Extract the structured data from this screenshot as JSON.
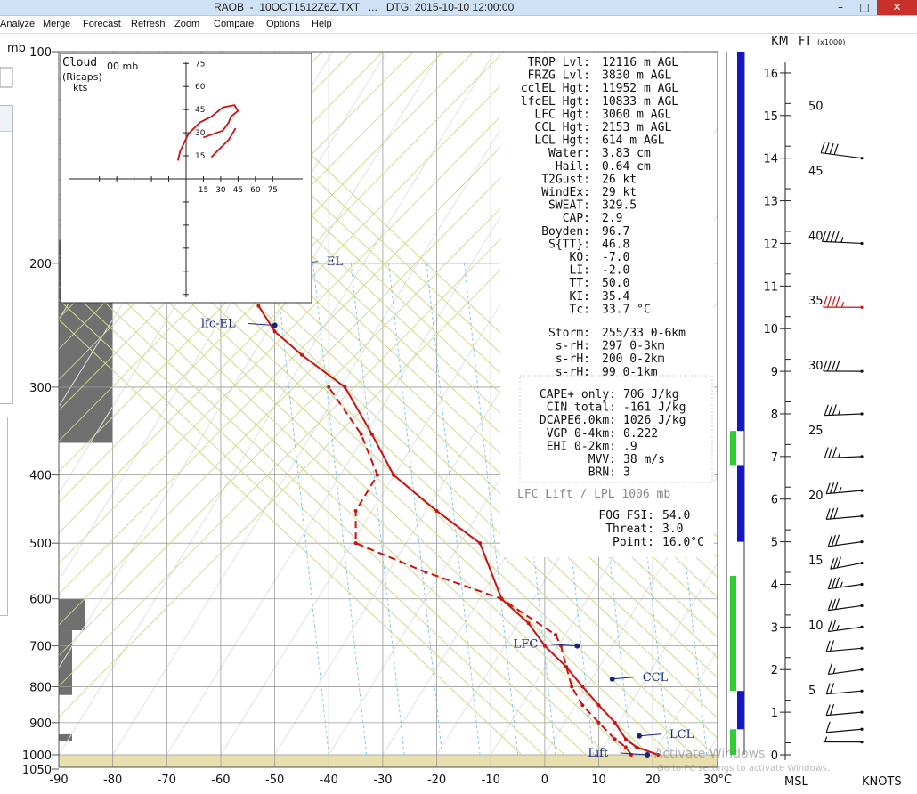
{
  "window": {
    "app": "RAOB",
    "file": "10OCT1512Z6Z.TXT",
    "dtg": "DTG: 2015-10-10 12:00:00",
    "title_full": "RAOB  -  10OCT1512Z6Z.TXT   ...   DTG: 2015-10-10 12:00:00",
    "controls": [
      "–",
      "□",
      "✕"
    ]
  },
  "menu": [
    "Analyze",
    "Merge",
    "Forecast",
    "Refresh",
    "Zoom",
    "Compare",
    "Options",
    "Help"
  ],
  "colors": {
    "temp": "#cc1111",
    "isotherm": "#9a9a9a",
    "dry_adiabat": "#cfd88a",
    "mixing_ratio": "#6ec3e8",
    "ground_band": "#e8dfae",
    "cloud_bar": "#707070",
    "blue_bar": "#1515c8",
    "green_bar": "#2ecf2e",
    "label_blue": "#1a237e"
  },
  "top_left_label": "mb",
  "chart_data": {
    "type": "line",
    "title": "",
    "xlabel": "",
    "ylabel": "mb",
    "x_unit_label": "30°C",
    "xticks": [
      -90,
      -80,
      -70,
      -60,
      -50,
      -40,
      -30,
      -20,
      -10,
      0,
      10,
      20
    ],
    "xlim": [
      -90,
      32
    ],
    "y_ticks": [
      100,
      200,
      300,
      400,
      500,
      600,
      700,
      800,
      900,
      1000,
      1050
    ],
    "ylim_mb": [
      100,
      1050
    ],
    "y_scale": "log",
    "series": [
      {
        "name": "temperature",
        "style": "solid",
        "points": [
          [
            21,
            1000
          ],
          [
            17,
            975
          ],
          [
            15,
            950
          ],
          [
            13,
            900
          ],
          [
            10,
            850
          ],
          [
            7,
            800
          ],
          [
            4,
            750
          ],
          [
            0,
            700
          ],
          [
            -3,
            650
          ],
          [
            -8,
            600
          ],
          [
            -12,
            500
          ],
          [
            -20,
            450
          ],
          [
            -28,
            400
          ],
          [
            -32,
            350
          ],
          [
            -37,
            300
          ],
          [
            -45,
            270
          ],
          [
            -50,
            250
          ],
          [
            -53,
            230
          ]
        ]
      },
      {
        "name": "dewpoint",
        "style": "dashed",
        "points": [
          [
            16,
            1000
          ],
          [
            15,
            975
          ],
          [
            13,
            950
          ],
          [
            10,
            900
          ],
          [
            7,
            850
          ],
          [
            5,
            800
          ],
          [
            4,
            750
          ],
          [
            3,
            700
          ],
          [
            2,
            675
          ],
          [
            -8,
            600
          ],
          [
            -22,
            550
          ],
          [
            -35,
            500
          ],
          [
            -35,
            450
          ],
          [
            -31,
            400
          ],
          [
            -34,
            350
          ],
          [
            -40,
            300
          ]
        ]
      }
    ],
    "markers": [
      {
        "label": "LFC",
        "t": 6,
        "p": 700,
        "label_side": "left"
      },
      {
        "label": "CCL",
        "t": 12.5,
        "p": 780,
        "label_side": "right"
      },
      {
        "label": "LCL",
        "t": 17.5,
        "p": 940,
        "label_side": "right"
      },
      {
        "label": "Lift",
        "t": 19,
        "p": 1000,
        "label_side": "left"
      },
      {
        "label": "lfc-EL",
        "t": -50,
        "p": 245,
        "label_side": "left"
      },
      {
        "label": "EL",
        "t": -46,
        "p": 200,
        "label_side": "right"
      }
    ],
    "cloud_cover": [
      {
        "p_top": 185,
        "p_bot": 360,
        "width_frac": 1.0
      },
      {
        "p_top": 600,
        "p_bot": 665,
        "width_frac": 0.5
      },
      {
        "p_top": 665,
        "p_bot": 822,
        "width_frac": 0.25
      },
      {
        "p_top": 935,
        "p_bot": 955,
        "width_frac": 0.25
      }
    ],
    "altitude_axes": {
      "km_label": "KM",
      "ft_label": "FT",
      "ft_unit": "(x1000)",
      "msl_label": "MSL",
      "knots_label": "KNOTS",
      "km_ticks": [
        0,
        1,
        2,
        3,
        4,
        5,
        6,
        7,
        8,
        9,
        10,
        11,
        12,
        13,
        14,
        15,
        16
      ],
      "ft_ticks": [
        5,
        10,
        15,
        20,
        25,
        30,
        35,
        40,
        45,
        50
      ],
      "km_range": [
        0,
        16.5
      ]
    },
    "wind_barbs": [
      {
        "km": 0.3,
        "dir": 250,
        "spd": 5,
        "highlight": false
      },
      {
        "km": 0.6,
        "dir": 240,
        "spd": 10,
        "highlight": false
      },
      {
        "km": 1.0,
        "dir": 240,
        "spd": 20,
        "highlight": false
      },
      {
        "km": 1.5,
        "dir": 240,
        "spd": 20,
        "highlight": false
      },
      {
        "km": 2.0,
        "dir": 235,
        "spd": 15,
        "highlight": false
      },
      {
        "km": 2.5,
        "dir": 240,
        "spd": 20,
        "highlight": false
      },
      {
        "km": 3.0,
        "dir": 235,
        "spd": 25,
        "highlight": false
      },
      {
        "km": 3.5,
        "dir": 235,
        "spd": 30,
        "highlight": false
      },
      {
        "km": 4.0,
        "dir": 235,
        "spd": 35,
        "highlight": false
      },
      {
        "km": 4.5,
        "dir": 230,
        "spd": 30,
        "highlight": false
      },
      {
        "km": 5.0,
        "dir": 235,
        "spd": 30,
        "highlight": false
      },
      {
        "km": 5.6,
        "dir": 240,
        "spd": 30,
        "highlight": false
      },
      {
        "km": 6.2,
        "dir": 240,
        "spd": 35,
        "highlight": false
      },
      {
        "km": 7.0,
        "dir": 245,
        "spd": 35,
        "highlight": false
      },
      {
        "km": 8.0,
        "dir": 245,
        "spd": 35,
        "highlight": false
      },
      {
        "km": 9.0,
        "dir": 250,
        "spd": 40,
        "highlight": false
      },
      {
        "km": 10.5,
        "dir": 250,
        "spd": 45,
        "highlight": true
      },
      {
        "km": 12.0,
        "dir": 255,
        "spd": 45,
        "highlight": false
      },
      {
        "km": 14.0,
        "dir": 265,
        "spd": 40,
        "highlight": false
      }
    ],
    "side_bars": [
      {
        "color": "blue",
        "km_bot": 7.6,
        "km_top": 16.5
      },
      {
        "color": "green",
        "km_bot": 6.8,
        "km_top": 7.6
      },
      {
        "color": "blue",
        "km_bot": 5.0,
        "km_top": 6.8
      },
      {
        "color": "green",
        "km_bot": 1.5,
        "km_top": 4.2
      },
      {
        "color": "blue",
        "km_bot": 0.6,
        "km_top": 1.5
      },
      {
        "color": "green",
        "km_bot": 0.0,
        "km_top": 0.6
      }
    ]
  },
  "inset": {
    "title": "Cloud",
    "subtitle": "(Ricaps)",
    "unit": "kts",
    "corner": "00 mb",
    "ticks": [
      15,
      30,
      45,
      60,
      75
    ],
    "hodograph": [
      [
        38,
        22
      ],
      [
        55,
        28
      ],
      [
        60,
        35
      ],
      [
        62,
        40
      ],
      [
        68,
        45
      ],
      [
        65,
        50
      ],
      [
        55,
        48
      ],
      [
        45,
        40
      ],
      [
        35,
        35
      ],
      [
        25,
        25
      ],
      [
        18,
        10
      ],
      [
        16,
        2
      ]
    ],
    "segment2": [
      [
        45,
        5
      ],
      [
        60,
        20
      ],
      [
        66,
        30
      ]
    ]
  },
  "params": [
    {
      "k": "TROP Lvl:",
      "v": "12116 m AGL"
    },
    {
      "k": "FRZG Lvl:",
      "v": " 3830 m AGL"
    },
    {
      "k": "cclEL Hgt:",
      "v": "11952 m AGL"
    },
    {
      "k": "lfcEL Hgt:",
      "v": "10833 m AGL"
    },
    {
      "k": "LFC Hgt:",
      "v": " 3060 m AGL"
    },
    {
      "k": "CCL Hgt:",
      "v": " 2153 m AGL"
    },
    {
      "k": "LCL Hgt:",
      "v": "  614 m AGL"
    },
    {
      "k": "Water:",
      "v": " 3.83 cm"
    },
    {
      "k": "Hail:",
      "v": " 0.64 cm"
    },
    {
      "k": "T2Gust:",
      "v": "   26 kt"
    },
    {
      "k": "WindEx:",
      "v": "   29 kt"
    },
    {
      "k": "SWEAT:",
      "v": "329.5"
    },
    {
      "k": "CAP:",
      "v": "  2.9"
    },
    {
      "k": "Boyden:",
      "v": " 96.7"
    },
    {
      "k": "S{TT}:",
      "v": " 46.8"
    },
    {
      "k": "KO:",
      "v": " -7.0"
    },
    {
      "k": "LI:",
      "v": " -2.0"
    },
    {
      "k": "TT:",
      "v": " 50.0"
    },
    {
      "k": "KI:",
      "v": " 35.4"
    },
    {
      "k": "Tc:",
      "v": " 33.7 °C"
    }
  ],
  "storm": [
    {
      "k": "Storm:",
      "v": "255/33 0-6km"
    },
    {
      "k": "s-rH:",
      "v": " 297  0-3km"
    },
    {
      "k": "s-rH:",
      "v": " 200  0-2km"
    },
    {
      "k": "s-rH:",
      "v": "  99  0-1km"
    }
  ],
  "cape": [
    {
      "k": "CAPE+ only:",
      "v": "  706 J/kg"
    },
    {
      "k": "CIN total:",
      "v": " -161 J/kg"
    },
    {
      "k": "DCAPE6.0km:",
      "v": " 1026 J/kg"
    },
    {
      "k": "VGP 0-4km:",
      "v": "  0.222"
    },
    {
      "k": "EHI 0-2km:",
      "v": "     .9"
    },
    {
      "k": "MVV:",
      "v": "   38 m/s"
    },
    {
      "k": "BRN:",
      "v": "    3"
    }
  ],
  "lfc_lift": "LFC Lift / LPL 1006 mb",
  "fog": [
    {
      "k": "FOG FSI:",
      "v": "54.0"
    },
    {
      "k": "Threat:",
      "v": " 3.0"
    },
    {
      "k": "Point:",
      "v": "16.0°C"
    }
  ],
  "watermark": {
    "line1": "Activate Windows",
    "line2": "Go to PC settings to activate Windows."
  }
}
